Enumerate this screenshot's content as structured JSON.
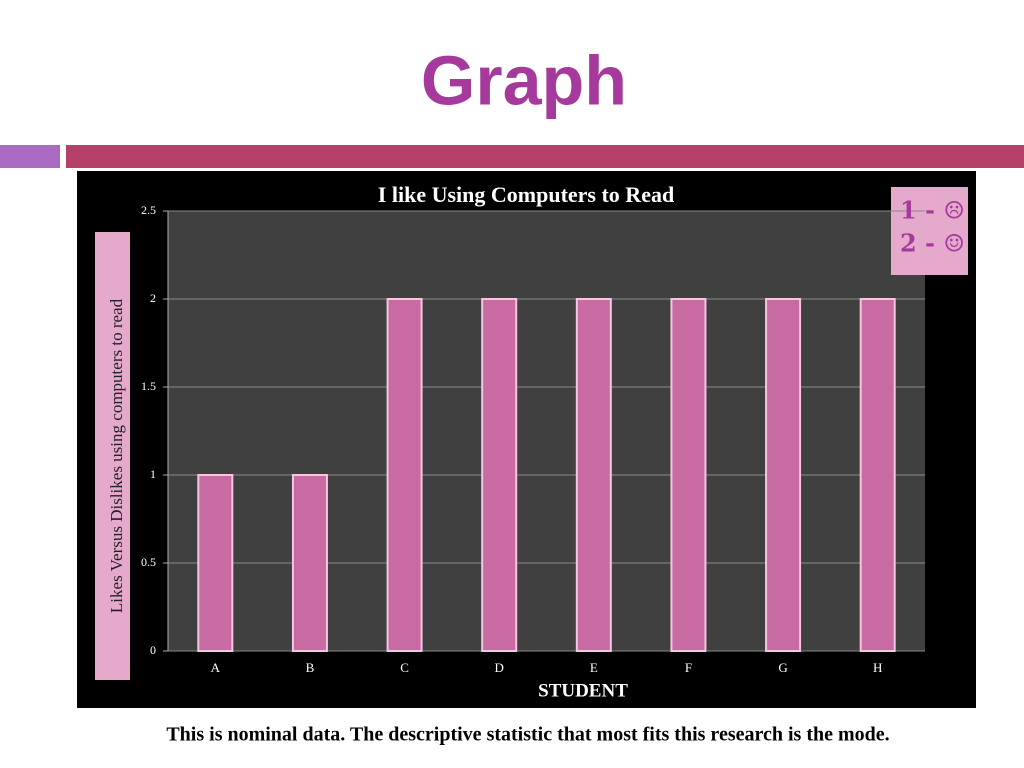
{
  "slide": {
    "title": "Graph",
    "note": "This is nominal data. The descriptive statistic that most fits this research is the mode."
  },
  "chart_data": {
    "type": "bar",
    "title": "I like Using Computers to Read",
    "categories": [
      "A",
      "B",
      "C",
      "D",
      "E",
      "F",
      "G",
      "H"
    ],
    "values": [
      1,
      1,
      2,
      2,
      2,
      2,
      2,
      2
    ],
    "color": "#c96ba3",
    "xlabel": "STUDENT",
    "ylabel": "Likes Versus Dislikes using computers to read",
    "ylim": [
      0,
      2.5
    ],
    "yticks": [
      0,
      0.5,
      1,
      1.5,
      2,
      2.5
    ],
    "grid": true,
    "annotations": [
      "1 - ☹",
      "2 - ☺"
    ]
  }
}
